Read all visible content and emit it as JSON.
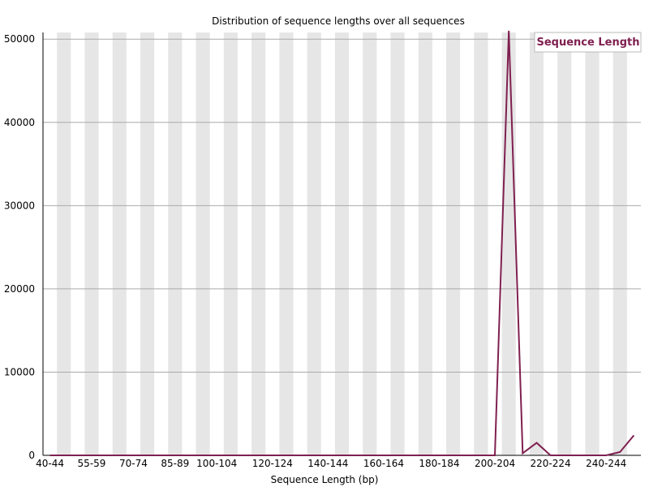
{
  "chart_data": {
    "type": "line",
    "title": "Distribution of sequence lengths over all sequences",
    "xlabel": "Sequence Length (bp)",
    "ylabel": "",
    "ylim": [
      0,
      50800
    ],
    "yticks": [
      "0",
      "10000",
      "20000",
      "30000",
      "40000",
      "50000"
    ],
    "grid": true,
    "legend_position": "top-right",
    "series_color": "#7f2050",
    "categories": [
      "40-44",
      "45-49",
      "50-54",
      "55-59",
      "60-64",
      "65-69",
      "70-74",
      "75-79",
      "80-84",
      "85-89",
      "90-94",
      "95-99",
      "100-104",
      "105-109",
      "110-114",
      "115-119",
      "120-124",
      "125-129",
      "130-134",
      "135-139",
      "140-144",
      "145-149",
      "150-154",
      "155-159",
      "160-164",
      "165-169",
      "170-174",
      "175-179",
      "180-184",
      "185-189",
      "190-194",
      "195-199",
      "200-204",
      "205-209",
      "210-214",
      "215-219",
      "220-224",
      "225-229",
      "230-234",
      "235-239",
      "240-244",
      "245-249",
      "250-254"
    ],
    "tick_labels": [
      "40-44",
      "55-59",
      "70-74",
      "85-89",
      "100-104",
      "120-124",
      "140-144",
      "160-164",
      "180-184",
      "200-204",
      "220-224",
      "240-244"
    ],
    "series": [
      {
        "name": "Sequence Length",
        "values": [
          0,
          0,
          0,
          0,
          0,
          0,
          0,
          0,
          0,
          0,
          0,
          0,
          0,
          0,
          0,
          0,
          0,
          0,
          0,
          0,
          0,
          0,
          0,
          0,
          0,
          0,
          0,
          0,
          0,
          0,
          0,
          0,
          0,
          51000,
          250,
          1500,
          0,
          0,
          0,
          0,
          0,
          400,
          2400
        ]
      }
    ]
  }
}
